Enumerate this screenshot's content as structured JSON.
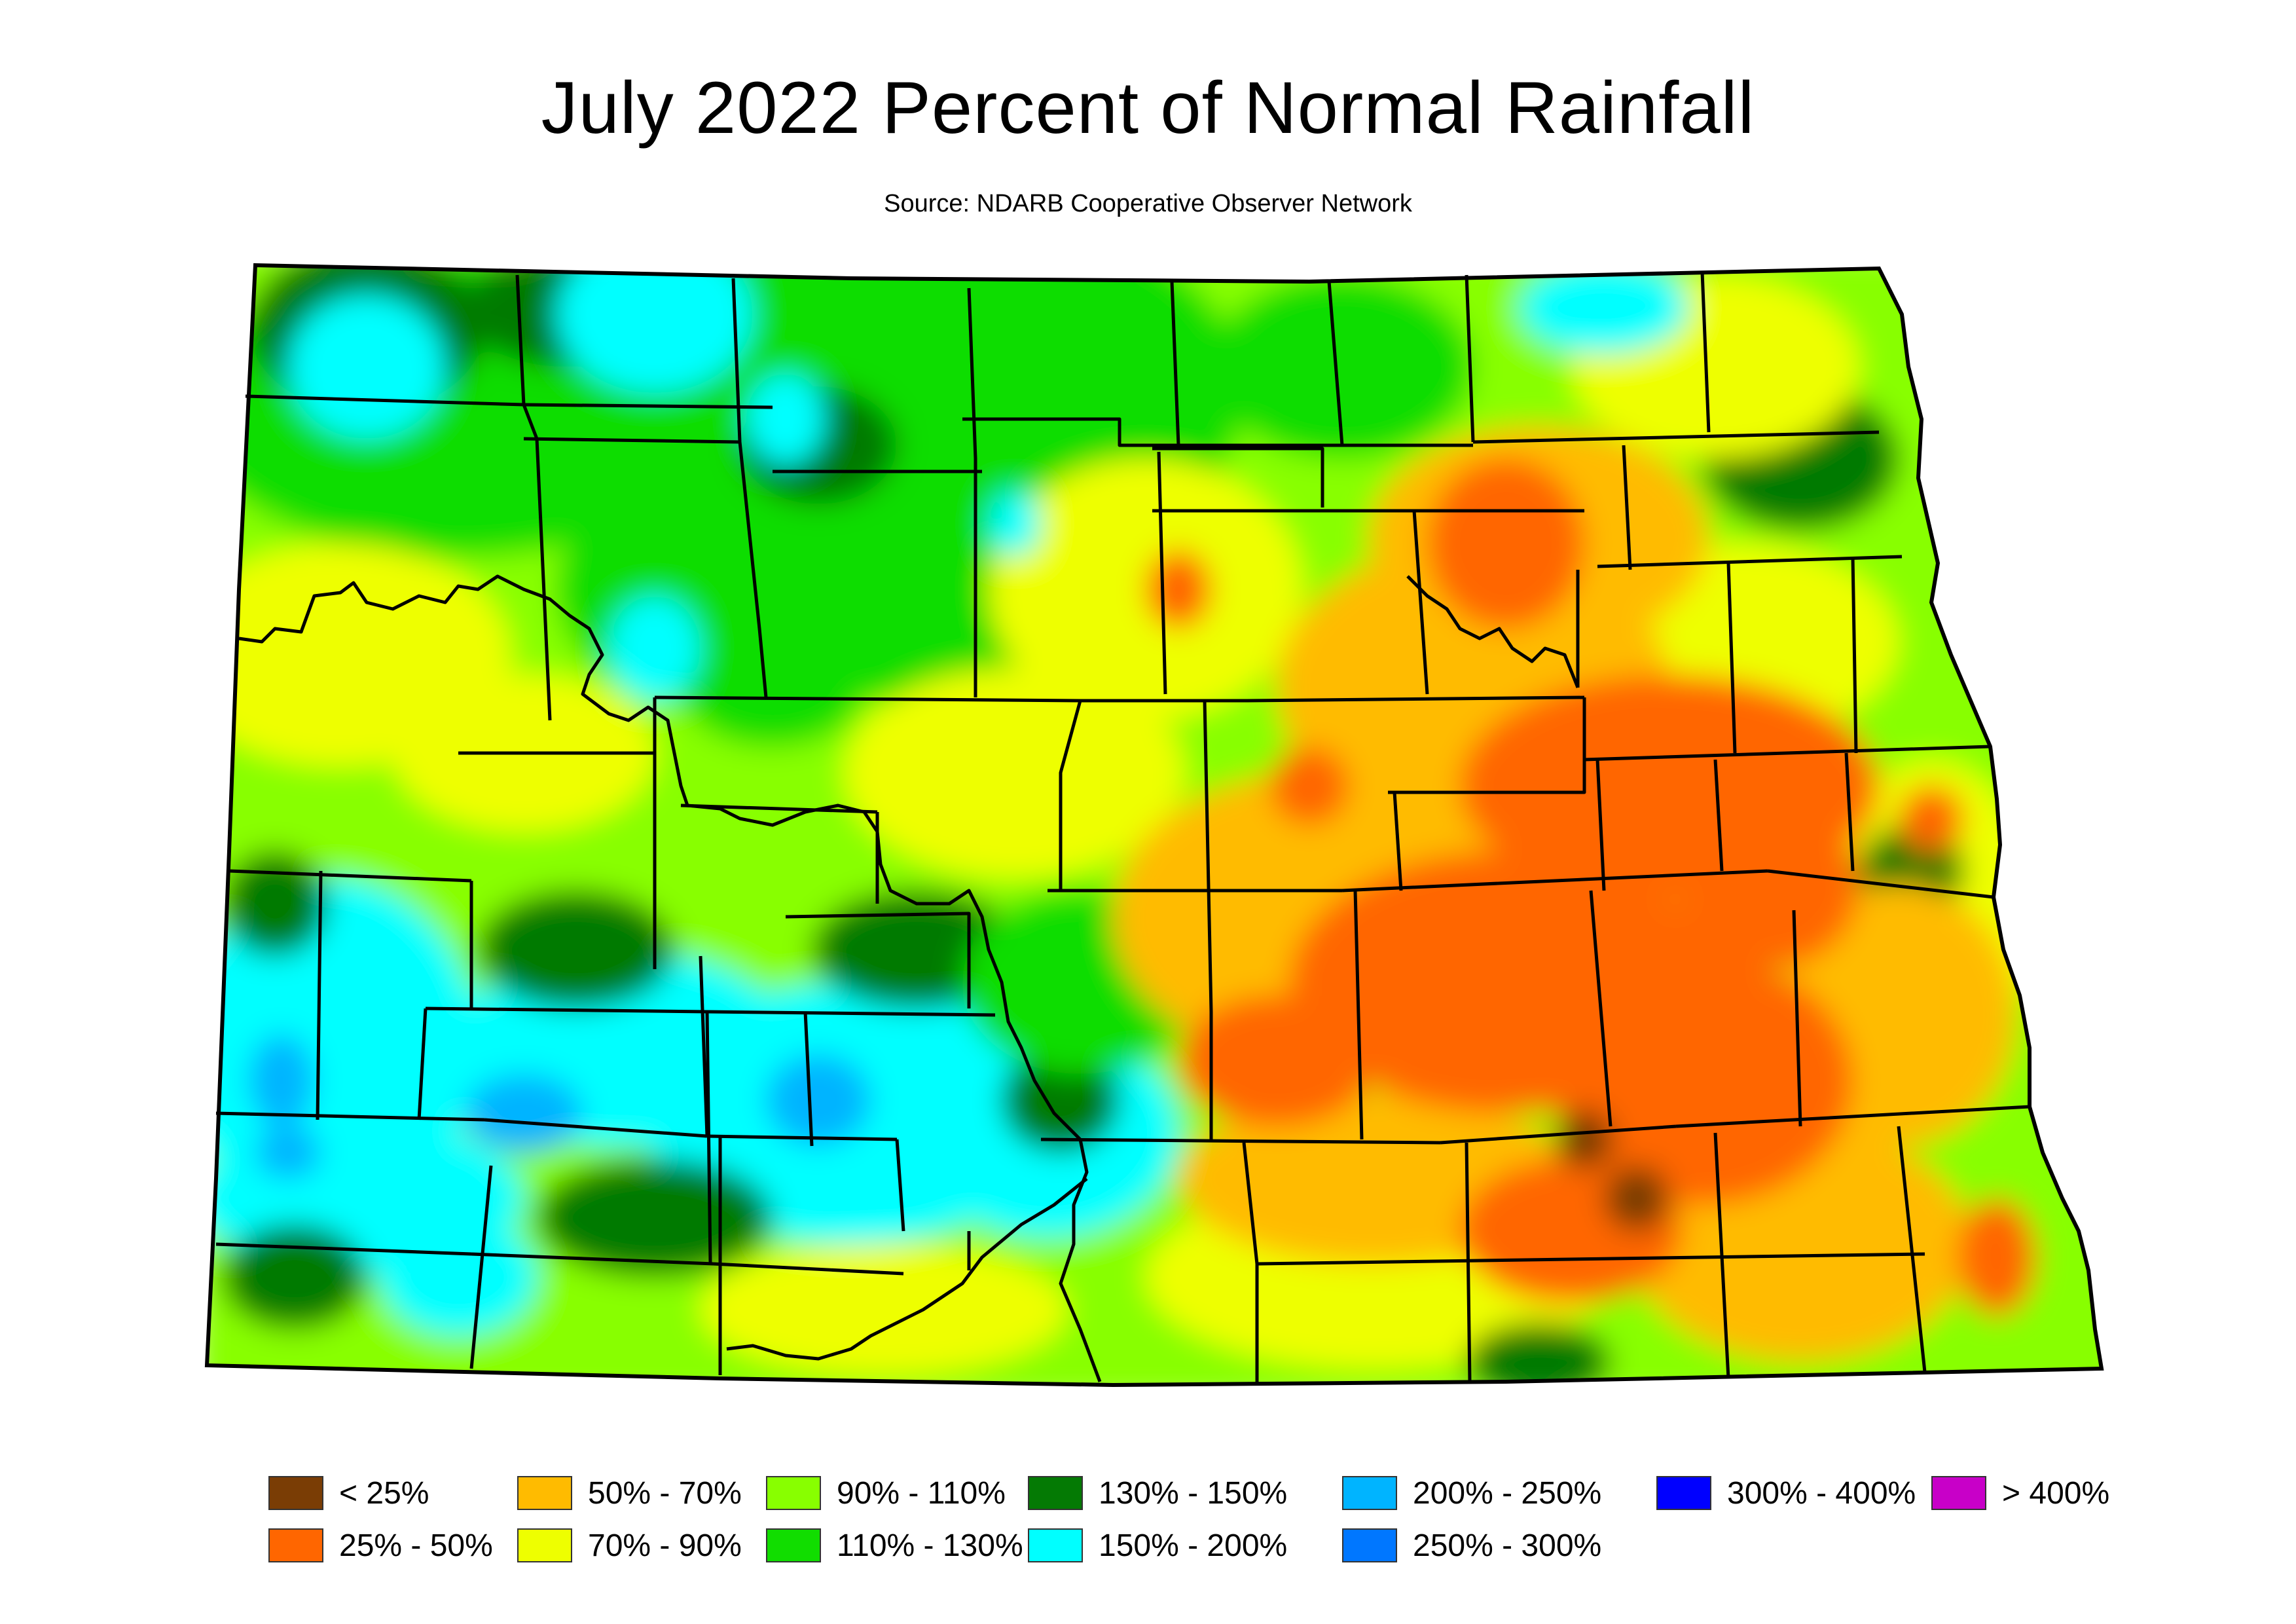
{
  "title": "July 2022 Percent of Normal Rainfall",
  "subtitle": "Source: NDARB Cooperative Observer Network",
  "palette": {
    "lt25": "#7a3d05",
    "p25_50": "#ff6600",
    "p50_70": "#ffbb00",
    "p70_90": "#eeff00",
    "p90_110": "#88ff00",
    "p110_130": "#11dd00",
    "p130_150": "#047a04",
    "p150_200": "#00ffff",
    "p200_250": "#00b4ff",
    "p250_300": "#0077ff",
    "p300_400": "#0000ff",
    "gt400": "#c800c8"
  },
  "legend": [
    {
      "label": "< 25%",
      "color": "#7a3d05"
    },
    {
      "label": "25% - 50%",
      "color": "#ff6600"
    },
    {
      "label": "50% - 70%",
      "color": "#ffbb00"
    },
    {
      "label": "70% - 90%",
      "color": "#eeff00"
    },
    {
      "label": "90% - 110%",
      "color": "#88ff00"
    },
    {
      "label": "110% - 130%",
      "color": "#11dd00"
    },
    {
      "label": "130% - 150%",
      "color": "#047a04"
    },
    {
      "label": "150% - 200%",
      "color": "#00ffff"
    },
    {
      "label": "200% - 250%",
      "color": "#00b4ff"
    },
    {
      "label": "250% - 300%",
      "color": "#0077ff"
    },
    {
      "label": "300% - 400%",
      "color": "#0000ff"
    },
    {
      "label": "> 400%",
      "color": "#c800c8"
    }
  ]
}
